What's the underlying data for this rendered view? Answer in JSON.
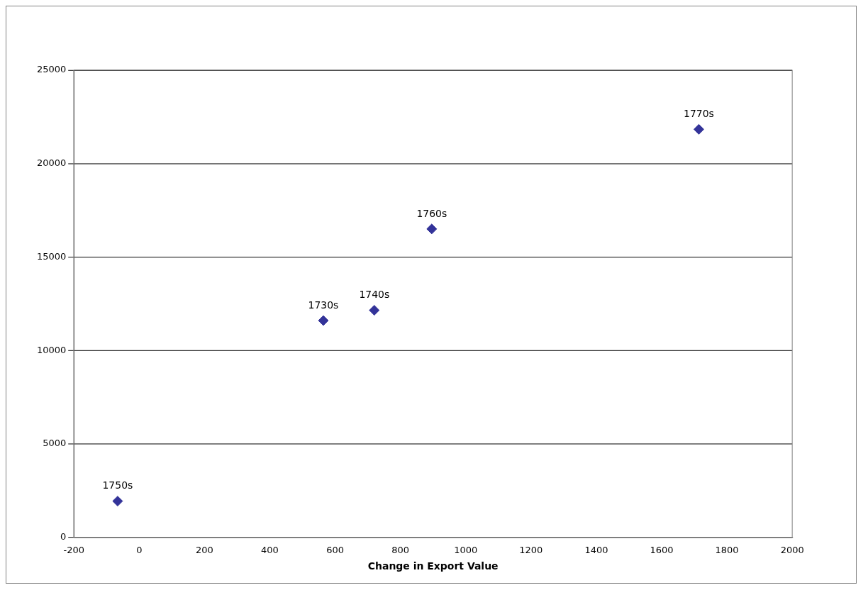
{
  "chart_data": {
    "type": "scatter",
    "xlabel": "Change in Export Value",
    "x": [
      564,
      720,
      -66,
      896,
      1714
    ],
    "series": [
      {
        "color": "#333399",
        "values": [
          11600,
          12150,
          1940,
          16500,
          21830
        ]
      }
    ],
    "xlim": [
      -200,
      2000
    ],
    "xticks": [
      -200,
      0,
      200,
      400,
      600,
      800,
      1000,
      1200,
      1400,
      1600,
      1800,
      2000
    ],
    "ylim": [
      0,
      25000
    ],
    "yticks": [
      0,
      5000,
      10000,
      15000,
      20000,
      25000
    ],
    "grid": "y",
    "legend": false,
    "marker": "diamond",
    "annotations": [
      {
        "text": "1730s",
        "x": 564,
        "y": 11600
      },
      {
        "text": "1740s",
        "x": 720,
        "y": 12150
      },
      {
        "text": "1750s",
        "x": -66,
        "y": 1940
      },
      {
        "text": "1760s",
        "x": 896,
        "y": 16500
      },
      {
        "text": "1770s",
        "x": 1714,
        "y": 21830
      }
    ]
  }
}
